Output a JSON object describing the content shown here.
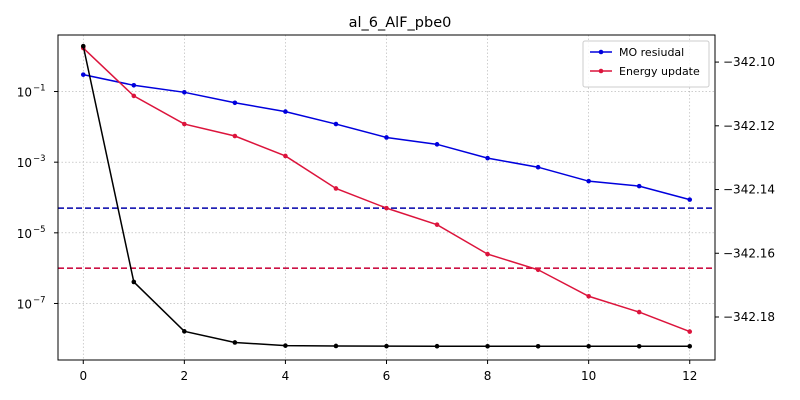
{
  "chart_data": {
    "type": "line",
    "title": "al_6_AlF_pbe0",
    "xlabel": "",
    "ylabel": "",
    "xlim": [
      -0.5,
      12.5
    ],
    "ylim_left_log10": [
      -8.6,
      0.6
    ],
    "ylim_right": [
      -342.1935,
      -342.0915
    ],
    "x_ticks": [
      0,
      2,
      4,
      6,
      8,
      10,
      12
    ],
    "x_tick_labels": [
      "0",
      "2",
      "4",
      "6",
      "8",
      "10",
      "12"
    ],
    "y_left_ticks": [
      -1,
      -3,
      -5,
      -7
    ],
    "y_left_tick_labels": [
      "10",
      "10",
      "10",
      "10"
    ],
    "y_left_tick_exponents": [
      "−1",
      "−3",
      "−5",
      "−7"
    ],
    "y_right_ticks": [
      -342.1,
      -342.12,
      -342.14,
      -342.16,
      -342.18
    ],
    "y_right_tick_labels": [
      "−342.10",
      "−342.12",
      "−342.14",
      "−342.16",
      "−342.18"
    ],
    "grid": true,
    "legend_position": "top-right",
    "x": [
      0,
      1,
      2,
      3,
      4,
      5,
      6,
      7,
      8,
      9,
      10,
      11,
      12
    ],
    "series": [
      {
        "name": "MO resiudal",
        "axis": "left-log",
        "color": "#0000dd",
        "values": [
          0.3,
          0.15,
          0.095,
          0.048,
          0.027,
          0.012,
          0.005,
          0.0032,
          0.0013,
          0.00072,
          0.00029,
          0.00021,
          8.7e-05
        ]
      },
      {
        "name": "Energy update",
        "axis": "left-log",
        "color": "#dc143c",
        "values": [
          1.7,
          0.075,
          0.012,
          0.0055,
          0.0015,
          0.00018,
          5e-05,
          1.7e-05,
          2.5e-06,
          9e-07,
          1.6e-07,
          5.7e-08,
          1.6e-08
        ]
      },
      {
        "axis": "right",
        "color": "#000000",
        "values": [
          -342.095,
          -342.169,
          -342.1845,
          -342.188,
          -342.189,
          -342.1891,
          -342.18915,
          -342.18918,
          -342.1892,
          -342.1892,
          -342.1892,
          -342.1892,
          -342.1892
        ]
      }
    ],
    "thresholds": [
      {
        "axis": "left-log",
        "value": 5e-05,
        "color": "#0000aa",
        "style": "dashed"
      },
      {
        "axis": "left-log",
        "value": 1e-06,
        "color": "#cc1144",
        "style": "dashed"
      }
    ]
  }
}
